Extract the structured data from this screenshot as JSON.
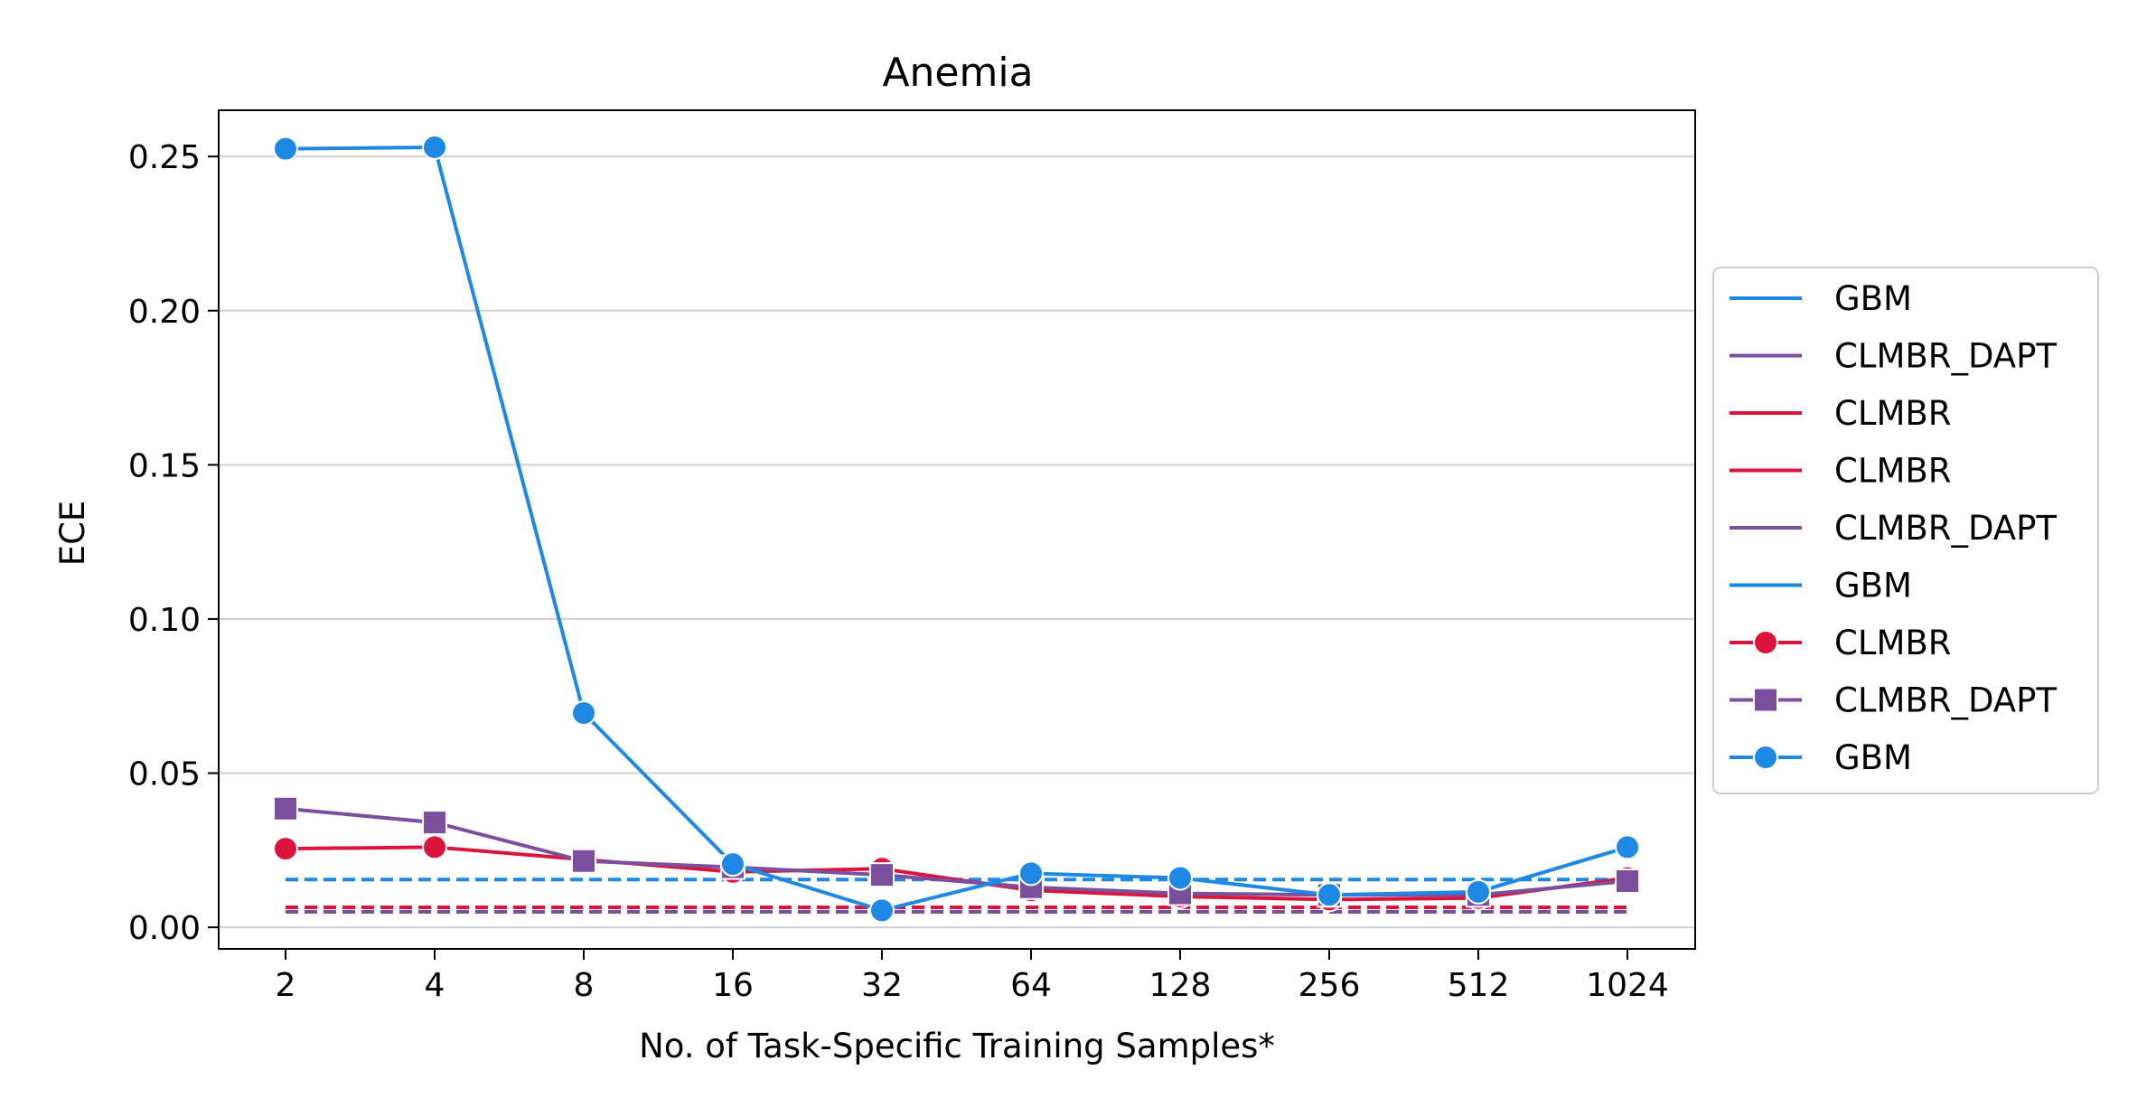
{
  "chart_data": {
    "type": "line",
    "title": "Anemia",
    "xlabel": "No. of Task-Specific Training Samples*",
    "ylabel": "ECE",
    "x": [
      2,
      4,
      8,
      16,
      32,
      64,
      128,
      256,
      512,
      1024
    ],
    "x_tick_labels": [
      "2",
      "4",
      "8",
      "16",
      "32",
      "64",
      "128",
      "256",
      "512",
      "1024"
    ],
    "y_ticks": [
      0.0,
      0.05,
      0.1,
      0.15,
      0.2,
      0.25
    ],
    "y_tick_labels": [
      "0.00",
      "0.05",
      "0.10",
      "0.15",
      "0.20",
      "0.25"
    ],
    "ylim": [
      -0.007,
      0.265
    ],
    "x_scale": "log2",
    "grid": "horizontal",
    "legend_position": "right-outside",
    "series": [
      {
        "name": "CLMBR",
        "color": "#DC143C",
        "marker": "circle",
        "values": [
          0.0255,
          0.026,
          0.022,
          0.018,
          0.019,
          0.012,
          0.01,
          0.009,
          0.0095,
          0.016
        ]
      },
      {
        "name": "CLMBR_DAPT",
        "color": "#7B4F9E",
        "marker": "square",
        "values": [
          0.0385,
          0.034,
          0.0215,
          0.0195,
          0.017,
          0.013,
          0.011,
          0.0105,
          0.0105,
          0.015
        ]
      },
      {
        "name": "GBM",
        "color": "#1E88E5",
        "marker": "circle",
        "values": [
          0.2525,
          0.253,
          0.0695,
          0.0205,
          0.0055,
          0.0175,
          0.016,
          0.0105,
          0.0115,
          0.026
        ]
      }
    ],
    "reference_lines": [
      {
        "name": "GBM",
        "color": "#1E88E5",
        "value": 0.0155,
        "style": "dashed"
      },
      {
        "name": "CLMBR_DAPT",
        "color": "#7B4F9E",
        "value": 0.005,
        "style": "dashed"
      },
      {
        "name": "CLMBR",
        "color": "#DC143C",
        "value": 0.0065,
        "style": "dashed"
      }
    ],
    "legend": [
      {
        "label": "GBM",
        "color": "#1E88E5",
        "marker": "none"
      },
      {
        "label": "CLMBR_DAPT",
        "color": "#7B4F9E",
        "marker": "none"
      },
      {
        "label": "CLMBR",
        "color": "#DC143C",
        "marker": "none"
      },
      {
        "label": "CLMBR",
        "color": "#DC143C",
        "marker": "none"
      },
      {
        "label": "CLMBR_DAPT",
        "color": "#7B4F9E",
        "marker": "none"
      },
      {
        "label": "GBM",
        "color": "#1E88E5",
        "marker": "none"
      },
      {
        "label": "CLMBR",
        "color": "#DC143C",
        "marker": "circle"
      },
      {
        "label": "CLMBR_DAPT",
        "color": "#7B4F9E",
        "marker": "square"
      },
      {
        "label": "GBM",
        "color": "#1E88E5",
        "marker": "circle"
      }
    ]
  }
}
